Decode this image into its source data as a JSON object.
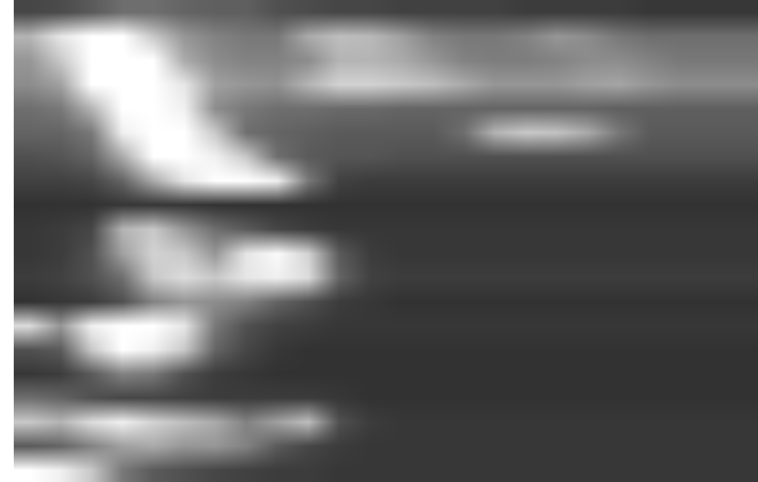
{
  "chart_data": {
    "type": "heatmap",
    "color": "gray",
    "tick_labels": false,
    "xlim": [
      -0.5,
      23.5
    ],
    "ylim": [
      19.5,
      -0.5
    ],
    "zlim": [
      0,
      255
    ],
    "cells": [
      [
        70,
        75,
        90,
        110,
        110,
        100,
        95,
        95,
        80,
        75,
        70,
        70,
        65,
        65,
        65,
        65,
        60,
        60,
        60,
        60,
        55,
        55,
        55,
        55
      ],
      [
        180,
        230,
        255,
        255,
        200,
        150,
        130,
        120,
        120,
        170,
        190,
        185,
        160,
        130,
        120,
        120,
        130,
        150,
        140,
        120,
        110,
        110,
        110,
        110
      ],
      [
        150,
        200,
        255,
        255,
        255,
        170,
        140,
        130,
        130,
        140,
        180,
        180,
        170,
        150,
        130,
        125,
        125,
        130,
        140,
        140,
        130,
        120,
        120,
        120
      ],
      [
        140,
        160,
        255,
        255,
        255,
        230,
        160,
        150,
        145,
        180,
        210,
        210,
        200,
        190,
        170,
        150,
        150,
        150,
        160,
        165,
        150,
        140,
        140,
        140
      ],
      [
        110,
        120,
        180,
        255,
        255,
        240,
        140,
        120,
        110,
        110,
        105,
        105,
        100,
        100,
        100,
        100,
        100,
        100,
        100,
        95,
        95,
        95,
        95,
        95
      ],
      [
        100,
        100,
        120,
        240,
        255,
        255,
        200,
        110,
        100,
        95,
        90,
        90,
        90,
        90,
        110,
        180,
        200,
        195,
        170,
        120,
        90,
        90,
        90,
        90
      ],
      [
        80,
        85,
        100,
        170,
        255,
        255,
        240,
        200,
        110,
        90,
        85,
        85,
        80,
        80,
        80,
        80,
        80,
        80,
        80,
        80,
        80,
        80,
        80,
        80
      ],
      [
        65,
        65,
        70,
        100,
        170,
        230,
        255,
        255,
        240,
        120,
        65,
        60,
        60,
        60,
        60,
        60,
        60,
        60,
        60,
        60,
        60,
        60,
        60,
        60
      ],
      [
        50,
        50,
        50,
        55,
        55,
        55,
        50,
        50,
        50,
        50,
        50,
        50,
        50,
        50,
        50,
        50,
        50,
        50,
        50,
        50,
        50,
        50,
        50,
        50
      ],
      [
        55,
        60,
        70,
        180,
        200,
        150,
        110,
        90,
        70,
        60,
        55,
        55,
        55,
        55,
        55,
        55,
        55,
        55,
        55,
        55,
        55,
        55,
        55,
        55
      ],
      [
        55,
        60,
        80,
        160,
        210,
        200,
        150,
        230,
        250,
        210,
        90,
        60,
        55,
        55,
        55,
        55,
        55,
        55,
        55,
        55,
        55,
        55,
        55,
        55
      ],
      [
        60,
        65,
        80,
        110,
        200,
        220,
        200,
        230,
        240,
        220,
        100,
        65,
        60,
        60,
        60,
        60,
        60,
        60,
        60,
        60,
        60,
        60,
        60,
        60
      ],
      [
        50,
        55,
        60,
        80,
        130,
        150,
        140,
        130,
        100,
        80,
        60,
        55,
        50,
        50,
        50,
        50,
        50,
        50,
        50,
        50,
        50,
        50,
        50,
        50
      ],
      [
        220,
        150,
        240,
        255,
        255,
        230,
        120,
        80,
        65,
        60,
        55,
        55,
        55,
        55,
        55,
        55,
        55,
        55,
        55,
        55,
        55,
        55,
        55,
        55
      ],
      [
        80,
        90,
        200,
        255,
        240,
        200,
        100,
        70,
        55,
        50,
        50,
        50,
        50,
        50,
        50,
        50,
        50,
        50,
        50,
        50,
        50,
        50,
        50,
        50
      ],
      [
        55,
        60,
        90,
        130,
        120,
        80,
        60,
        55,
        50,
        50,
        50,
        50,
        50,
        50,
        50,
        50,
        50,
        50,
        50,
        50,
        50,
        50,
        50,
        50
      ],
      [
        110,
        100,
        80,
        70,
        70,
        65,
        60,
        60,
        60,
        60,
        55,
        50,
        50,
        50,
        50,
        50,
        50,
        50,
        50,
        50,
        50,
        50,
        50,
        50
      ],
      [
        200,
        180,
        220,
        240,
        210,
        190,
        170,
        130,
        160,
        190,
        80,
        60,
        55,
        55,
        55,
        55,
        55,
        55,
        55,
        55,
        55,
        55,
        55,
        55
      ],
      [
        90,
        100,
        130,
        160,
        170,
        150,
        150,
        130,
        90,
        70,
        60,
        55,
        55,
        55,
        55,
        55,
        55,
        55,
        55,
        55,
        55,
        55,
        55,
        55
      ],
      [
        255,
        240,
        200,
        120,
        90,
        80,
        70,
        65,
        60,
        60,
        55,
        55,
        55,
        55,
        55,
        55,
        55,
        55,
        55,
        55,
        55,
        55,
        55,
        55
      ]
    ]
  }
}
